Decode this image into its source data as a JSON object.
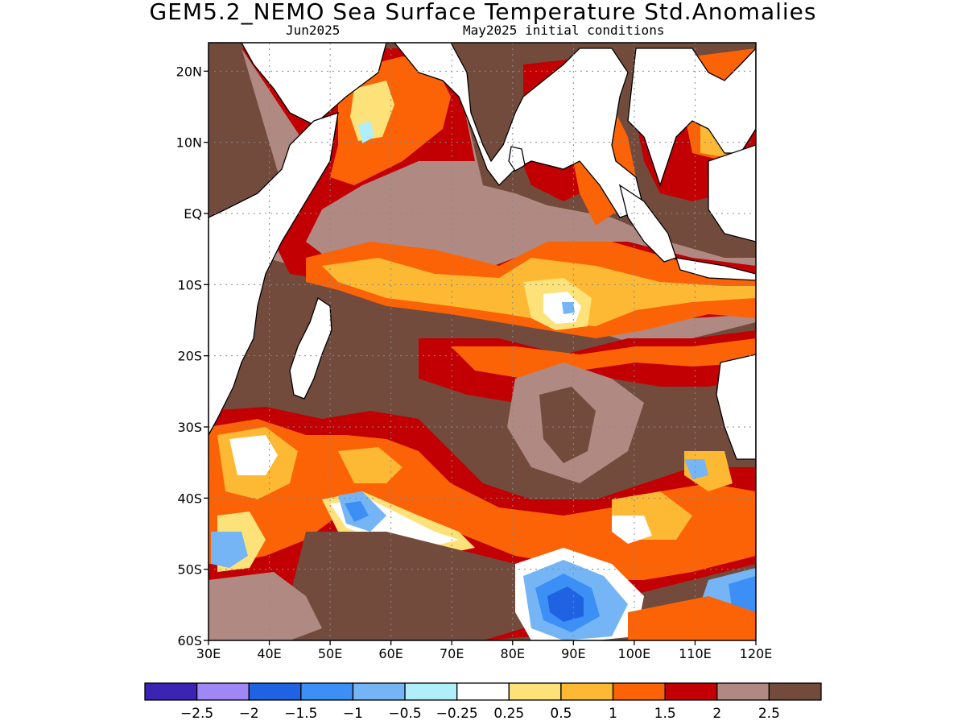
{
  "title": "GEM5.2_NEMO Sea Surface Temperature Std.Anomalies",
  "subtitle_left": "Jun2025",
  "subtitle_right": "May2025 initial conditions",
  "map": {
    "lon_range": [
      30,
      120
    ],
    "lat_range": [
      -60,
      24
    ],
    "lat_ticks": [
      {
        "value": 20,
        "label": "20N"
      },
      {
        "value": 10,
        "label": "10N"
      },
      {
        "value": 0,
        "label": "EQ"
      },
      {
        "value": -10,
        "label": "10S"
      },
      {
        "value": -20,
        "label": "20S"
      },
      {
        "value": -30,
        "label": "30S"
      },
      {
        "value": -40,
        "label": "40S"
      },
      {
        "value": -50,
        "label": "50S"
      },
      {
        "value": -60,
        "label": "60S"
      }
    ],
    "lon_ticks": [
      {
        "value": 30,
        "label": "30E"
      },
      {
        "value": 40,
        "label": "40E"
      },
      {
        "value": 50,
        "label": "50E"
      },
      {
        "value": 60,
        "label": "60E"
      },
      {
        "value": 70,
        "label": "70E"
      },
      {
        "value": 80,
        "label": "80E"
      },
      {
        "value": 90,
        "label": "90E"
      },
      {
        "value": 100,
        "label": "100E"
      },
      {
        "value": 110,
        "label": "110E"
      },
      {
        "value": 120,
        "label": "120E"
      }
    ]
  },
  "colorbar": {
    "colors": [
      "#3b23b3",
      "#9f87f5",
      "#1f63e3",
      "#3b8ff5",
      "#75b5f5",
      "#b0eefa",
      "#ffffff",
      "#fde27a",
      "#fdb934",
      "#fb6306",
      "#c20004",
      "#b08a82",
      "#734b3d"
    ],
    "labels": [
      "−2.5",
      "−2",
      "−1.5",
      "−1",
      "−0.5",
      "−0.25",
      "0.25",
      "0.5",
      "1",
      "1.5",
      "2",
      "2.5"
    ]
  }
}
